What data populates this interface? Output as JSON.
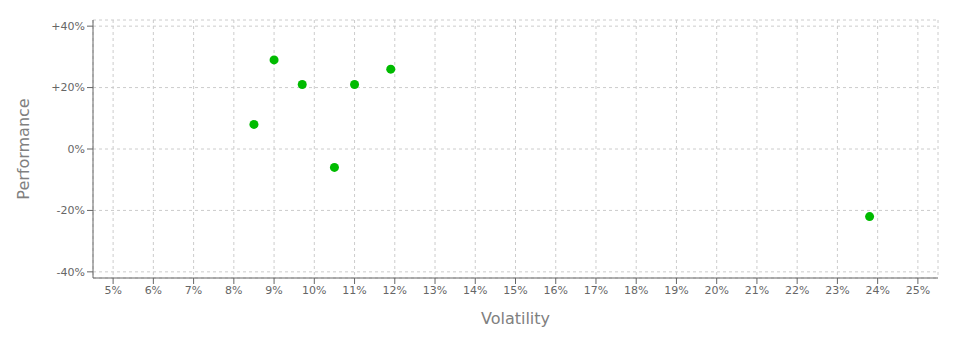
{
  "chart_data": {
    "type": "scatter",
    "xlabel": "Volatility",
    "ylabel": "Performance",
    "x": [
      9.0,
      9.7,
      8.5,
      10.5,
      11.0,
      11.9,
      23.8
    ],
    "values": [
      29.0,
      21.0,
      8.0,
      -6.0,
      21.0,
      26.0,
      -22.0
    ],
    "color": "#00BB00",
    "marker": "circle",
    "xlim": [
      4.5,
      25.5
    ],
    "ylim": [
      -42,
      42
    ],
    "xticks": [
      {
        "value": 5,
        "label": "5%"
      },
      {
        "value": 6,
        "label": "6%"
      },
      {
        "value": 7,
        "label": "7%"
      },
      {
        "value": 8,
        "label": "8%"
      },
      {
        "value": 9,
        "label": "9%"
      },
      {
        "value": 10,
        "label": "10%"
      },
      {
        "value": 11,
        "label": "11%"
      },
      {
        "value": 12,
        "label": "12%"
      },
      {
        "value": 13,
        "label": "13%"
      },
      {
        "value": 14,
        "label": "14%"
      },
      {
        "value": 15,
        "label": "15%"
      },
      {
        "value": 16,
        "label": "16%"
      },
      {
        "value": 17,
        "label": "17%"
      },
      {
        "value": 18,
        "label": "18%"
      },
      {
        "value": 19,
        "label": "19%"
      },
      {
        "value": 20,
        "label": "20%"
      },
      {
        "value": 21,
        "label": "21%"
      },
      {
        "value": 22,
        "label": "22%"
      },
      {
        "value": 23,
        "label": "23%"
      },
      {
        "value": 24,
        "label": "24%"
      },
      {
        "value": 25,
        "label": "25%"
      }
    ],
    "yticks": [
      {
        "value": -40,
        "label": "-40%"
      },
      {
        "value": -20,
        "label": "-20%"
      },
      {
        "value": 0,
        "label": "0%"
      },
      {
        "value": 20,
        "label": "+20%"
      },
      {
        "value": 40,
        "label": "+40%"
      }
    ],
    "grid": true
  }
}
